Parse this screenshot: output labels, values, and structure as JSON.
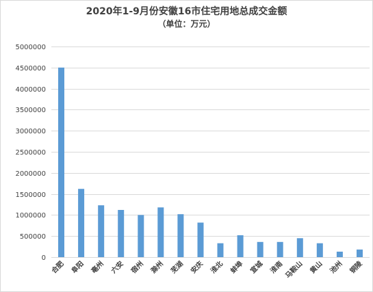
{
  "chart_data": {
    "type": "bar",
    "title": "2020年1-9月份安徽16市住宅用地总成交金额",
    "subtitle": "（单位：万元）",
    "categories": [
      "合肥",
      "阜阳",
      "亳州",
      "六安",
      "宿州",
      "滁州",
      "芜湖",
      "安庆",
      "淮北",
      "蚌埠",
      "宣城",
      "淮南",
      "马鞍山",
      "黄山",
      "池州",
      "铜陵"
    ],
    "values": [
      4500000,
      1620000,
      1230000,
      1120000,
      1000000,
      1180000,
      1020000,
      820000,
      330000,
      520000,
      360000,
      360000,
      450000,
      330000,
      130000,
      180000
    ],
    "yticks": [
      "0",
      "500000",
      "1000000",
      "1500000",
      "2000000",
      "2500000",
      "3000000",
      "3500000",
      "4000000",
      "4500000",
      "5000000"
    ],
    "ylim": [
      0,
      5000000
    ],
    "grid": true,
    "legend": "none",
    "bar_color": "#5b9bd5",
    "grid_color": "#d9d9d9"
  }
}
